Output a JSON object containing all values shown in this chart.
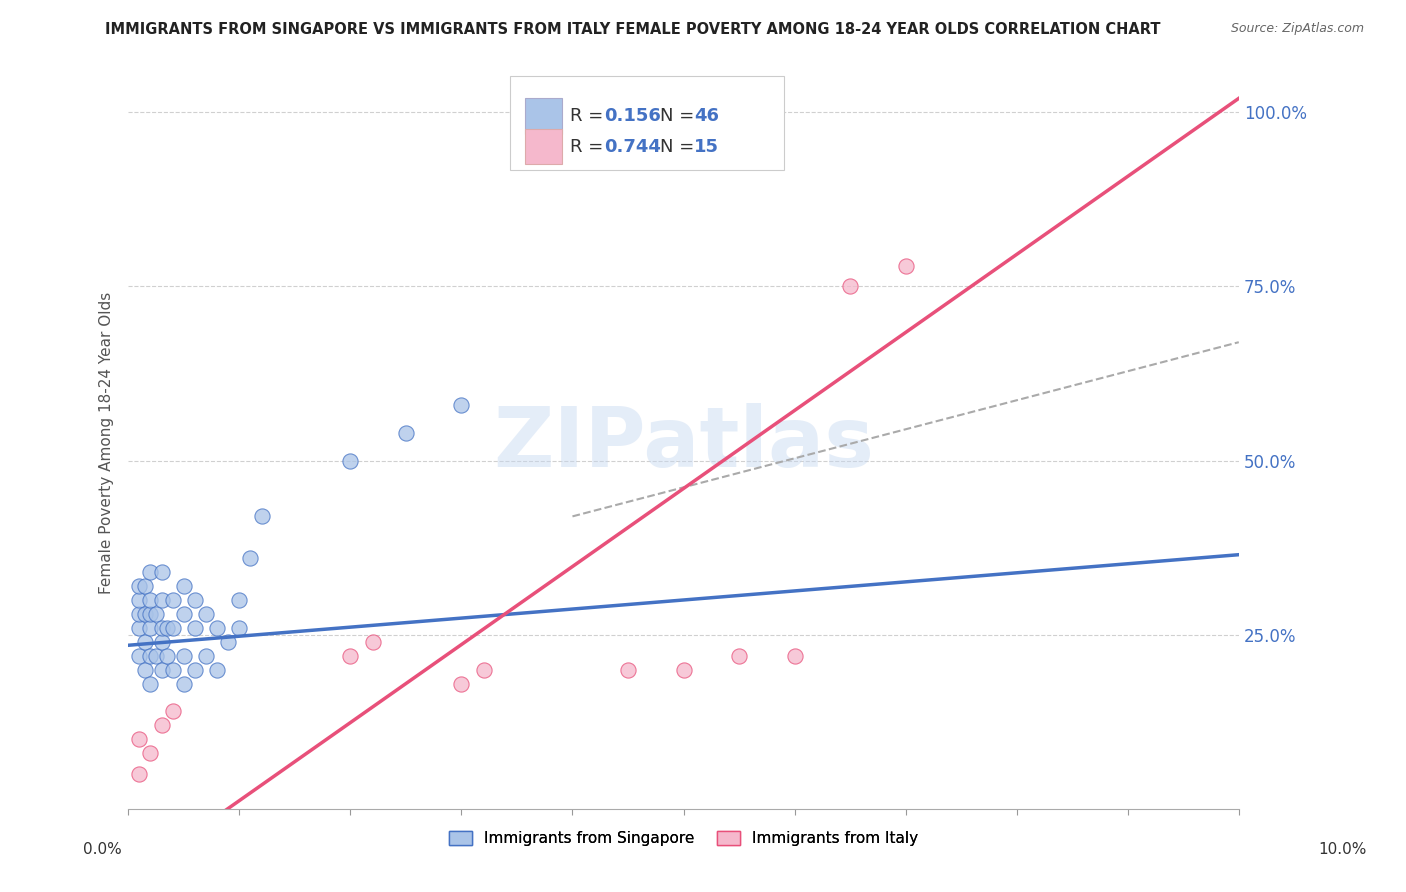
{
  "title": "IMMIGRANTS FROM SINGAPORE VS IMMIGRANTS FROM ITALY FEMALE POVERTY AMONG 18-24 YEAR OLDS CORRELATION CHART",
  "source": "Source: ZipAtlas.com",
  "ylabel": "Female Poverty Among 18-24 Year Olds",
  "xlim": [
    0.0,
    0.1
  ],
  "ylim": [
    0.0,
    1.05
  ],
  "singapore_color": "#aac4e8",
  "italy_color": "#f5b8cc",
  "singapore_line_color": "#4472c4",
  "italy_line_color": "#e8507a",
  "watermark": "ZIPatlas",
  "legend_label1": "Immigrants from Singapore",
  "legend_label2": "Immigrants from Italy",
  "sg_r": "0.156",
  "sg_n": "46",
  "it_r": "0.744",
  "it_n": "15",
  "singapore_x": [
    0.001,
    0.001,
    0.001,
    0.001,
    0.001,
    0.0015,
    0.0015,
    0.0015,
    0.0015,
    0.002,
    0.002,
    0.002,
    0.002,
    0.002,
    0.002,
    0.0025,
    0.0025,
    0.003,
    0.003,
    0.003,
    0.003,
    0.003,
    0.0035,
    0.0035,
    0.004,
    0.004,
    0.004,
    0.005,
    0.005,
    0.005,
    0.005,
    0.006,
    0.006,
    0.006,
    0.007,
    0.007,
    0.008,
    0.008,
    0.009,
    0.01,
    0.01,
    0.011,
    0.012,
    0.02,
    0.025,
    0.03
  ],
  "singapore_y": [
    0.22,
    0.26,
    0.28,
    0.3,
    0.32,
    0.2,
    0.24,
    0.28,
    0.32,
    0.18,
    0.22,
    0.26,
    0.28,
    0.3,
    0.34,
    0.22,
    0.28,
    0.2,
    0.24,
    0.26,
    0.3,
    0.34,
    0.22,
    0.26,
    0.2,
    0.26,
    0.3,
    0.18,
    0.22,
    0.28,
    0.32,
    0.2,
    0.26,
    0.3,
    0.22,
    0.28,
    0.2,
    0.26,
    0.24,
    0.26,
    0.3,
    0.36,
    0.42,
    0.5,
    0.54,
    0.58
  ],
  "italy_x": [
    0.001,
    0.001,
    0.002,
    0.003,
    0.004,
    0.02,
    0.022,
    0.03,
    0.032,
    0.045,
    0.05,
    0.055,
    0.06,
    0.065,
    0.07
  ],
  "italy_y": [
    0.05,
    0.1,
    0.08,
    0.12,
    0.14,
    0.22,
    0.24,
    0.18,
    0.2,
    0.2,
    0.2,
    0.22,
    0.22,
    0.75,
    0.78
  ]
}
